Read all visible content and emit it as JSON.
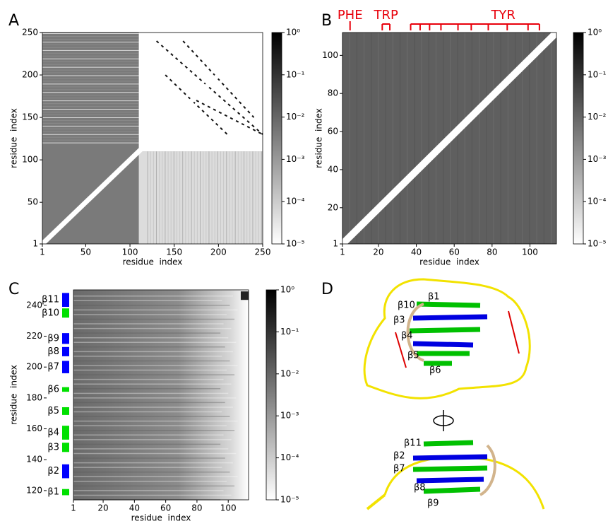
{
  "chart_data": [
    {
      "type": "heatmap",
      "panel": "A",
      "xlabel": "residue  index",
      "ylabel": "residue  index",
      "xlim": [
        1,
        250
      ],
      "ylim": [
        1,
        250
      ],
      "xticks": [
        1,
        50,
        100,
        150,
        200,
        250
      ],
      "yticks": [
        1,
        50,
        100,
        150,
        200,
        250
      ],
      "colorbar": {
        "scale": "log",
        "lim": [
          1e-05,
          1
        ],
        "ticks": [
          {
            "value": 1,
            "label": "10⁰"
          },
          {
            "value": 0.1,
            "label": "10⁻¹"
          },
          {
            "value": 0.01,
            "label": "10⁻²"
          },
          {
            "value": 0.001,
            "label": "10⁻³"
          },
          {
            "value": 0.0001,
            "label": "10⁻⁴"
          },
          {
            "value": 1e-05,
            "label": "10⁻⁵"
          }
        ]
      }
    },
    {
      "type": "heatmap",
      "panel": "B",
      "xlabel": "residue  index",
      "ylabel": "residue  index",
      "xlim": [
        1,
        114
      ],
      "ylim": [
        1,
        112
      ],
      "xticks": [
        1,
        20,
        40,
        60,
        80,
        100
      ],
      "yticks": [
        1,
        20,
        40,
        60,
        80,
        100
      ],
      "colorbar": {
        "scale": "log",
        "lim": [
          1e-05,
          1
        ],
        "ticks": [
          {
            "value": 1,
            "label": "10⁰"
          },
          {
            "value": 0.1,
            "label": "10⁻¹"
          },
          {
            "value": 0.01,
            "label": "10⁻²"
          },
          {
            "value": 0.001,
            "label": "10⁻³"
          },
          {
            "value": 0.0001,
            "label": "10⁻⁴"
          },
          {
            "value": 1e-05,
            "label": "10⁻⁵"
          }
        ]
      },
      "residue_groups": [
        {
          "name": "PHE",
          "color": "#e8000b",
          "positions": [
            5
          ]
        },
        {
          "name": "TRP",
          "color": "#e8000b",
          "positions": [
            22,
            26
          ]
        },
        {
          "name": "TYR",
          "color": "#e8000b",
          "positions": [
            37,
            42,
            47,
            53,
            62,
            69,
            78,
            88,
            99,
            105
          ]
        }
      ]
    },
    {
      "type": "heatmap",
      "panel": "C",
      "xlabel": "residue  index",
      "ylabel": "residue  index",
      "xlim": [
        1,
        113
      ],
      "ylim": [
        114,
        250
      ],
      "xticks": [
        1,
        20,
        40,
        60,
        80,
        100
      ],
      "yticks": [
        120,
        140,
        160,
        180,
        200,
        220,
        240
      ],
      "colorbar": {
        "scale": "log",
        "lim": [
          1e-05,
          1
        ],
        "ticks": [
          {
            "value": 1,
            "label": "10⁰"
          },
          {
            "value": 0.1,
            "label": "10⁻¹"
          },
          {
            "value": 0.01,
            "label": "10⁻²"
          },
          {
            "value": 0.001,
            "label": "10⁻³"
          },
          {
            "value": 0.0001,
            "label": "10⁻⁴"
          },
          {
            "value": 1e-05,
            "label": "10⁻⁵"
          }
        ]
      },
      "strands": [
        {
          "name": "β11",
          "color": "#0000ff",
          "start": 239,
          "end": 248
        },
        {
          "name": "β10",
          "color": "#00e000",
          "start": 232,
          "end": 238
        },
        {
          "name": "β9",
          "color": "#0000ff",
          "start": 215,
          "end": 222
        },
        {
          "name": "β8",
          "color": "#0000ff",
          "start": 207,
          "end": 213
        },
        {
          "name": "β7",
          "color": "#0000ff",
          "start": 196,
          "end": 204
        },
        {
          "name": "β6",
          "color": "#00e000",
          "start": 184,
          "end": 187
        },
        {
          "name": "β5",
          "color": "#00e000",
          "start": 169,
          "end": 174
        },
        {
          "name": "β4",
          "color": "#00e000",
          "start": 153,
          "end": 162
        },
        {
          "name": "β3",
          "color": "#00e000",
          "start": 145,
          "end": 151
        },
        {
          "name": "β2",
          "color": "#0000ff",
          "start": 128,
          "end": 137
        },
        {
          "name": "β1",
          "color": "#00e000",
          "start": 117,
          "end": 121
        }
      ]
    }
  ],
  "structure": {
    "panel": "D",
    "top_labels": [
      "β1",
      "β10",
      "β3",
      "β4",
      "β5",
      "β6"
    ],
    "bottom_labels": [
      "β11",
      "β2",
      "β7",
      "β8",
      "β9"
    ]
  }
}
